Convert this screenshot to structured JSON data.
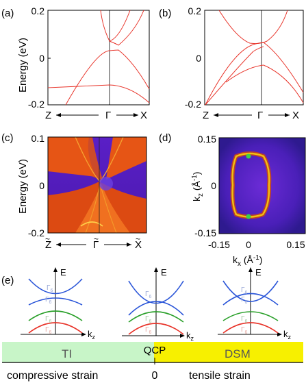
{
  "panels": {
    "a": {
      "label": "(a)",
      "ylabel": "Energy (eV)",
      "yticks": [
        "0.2",
        "0",
        "-0.2"
      ],
      "xleft": "Z",
      "xmid": "Γ",
      "xright": "X"
    },
    "b": {
      "label": "(b)",
      "yticks": [
        "0.2",
        "0",
        "-0.2"
      ],
      "xleft": "Z",
      "xmid": "Γ",
      "xright": "X"
    },
    "c": {
      "label": "(c)",
      "ylabel": "Energy (eV)",
      "yticks": [
        "0.1",
        "0",
        "-0.2"
      ],
      "xleft": "Z",
      "xmid": "Γ",
      "xright": "X"
    },
    "d": {
      "label": "(d)",
      "ylabel_main": "k",
      "ylabel_sub": "z",
      "ylabel_unit": " (Å",
      "ylabel_sup": "-1",
      "ylabel_end": ")",
      "xlabel_main": "k",
      "xlabel_sub": "x",
      "xlabel_unit": " (Å",
      "xlabel_sup": "-1",
      "xlabel_end": ")",
      "yticks": [
        "0.15",
        "0",
        "-0.15"
      ],
      "xticks": [
        "-0.15",
        "0",
        "0.15"
      ]
    },
    "e": {
      "label": "(e)",
      "axis_e": "E",
      "axis_k": "k",
      "axis_k_sub": "z",
      "gamma": "Γ",
      "irrep_top": "7",
      "irrep_bot": "6",
      "irrep_sup": "-",
      "irrep_sup2": "+",
      "phase_ti": "TI",
      "phase_dsm": "DSM",
      "phase_qcp": "QCP",
      "strain_left": "compressive strain",
      "strain_zero": "0",
      "strain_right": "tensile strain"
    }
  },
  "colors": {
    "band_red": "#e8342a",
    "band_blue": "#2a55d8",
    "band_green": "#2aa02a",
    "irrep_label": "#9aa9d8",
    "irrep_label_red": "#e6a7a0",
    "ti_fill": "#c8f5c8",
    "dsm_fill": "#f7f000",
    "map_bg": "#3a17a0",
    "map_ring": "#e7b200",
    "dirac_point": "#3bd24a"
  }
}
